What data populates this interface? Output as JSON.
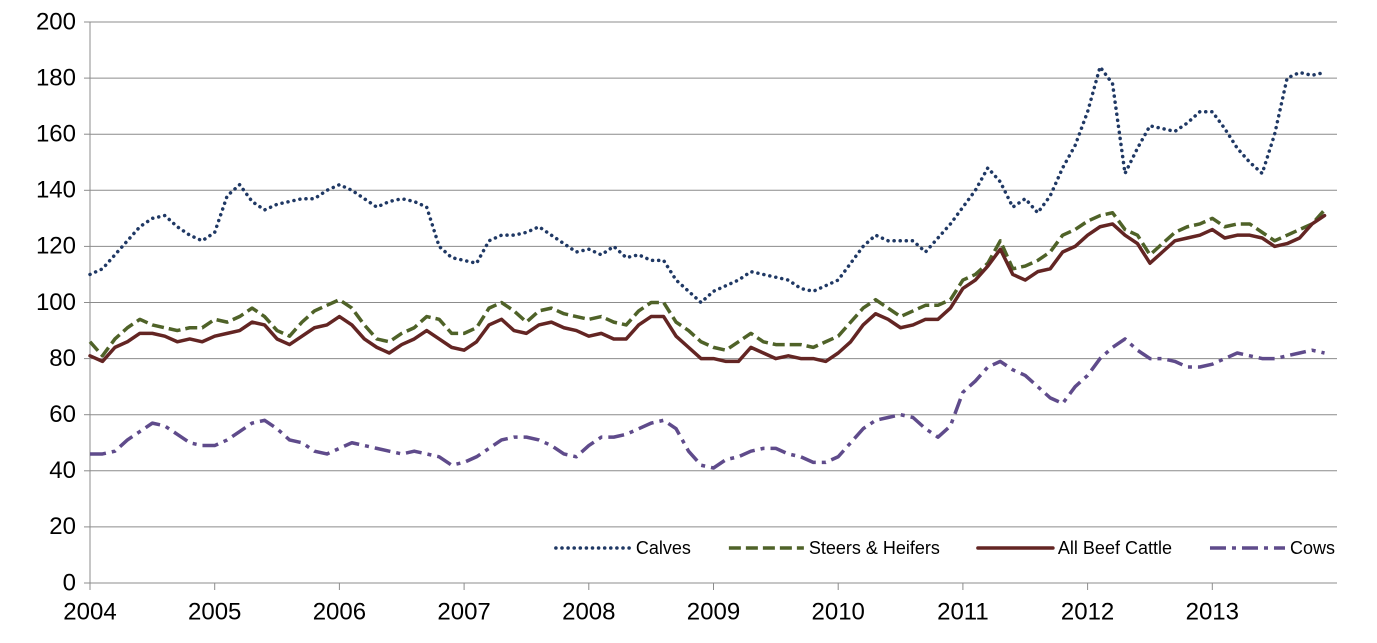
{
  "chart_data": {
    "type": "line",
    "x": [
      2004,
      2004.1,
      2004.2,
      2004.3,
      2004.4,
      2004.5,
      2004.6,
      2004.7,
      2004.8,
      2004.9,
      2005,
      2005.1,
      2005.2,
      2005.3,
      2005.4,
      2005.5,
      2005.6,
      2005.7,
      2005.8,
      2005.9,
      2006,
      2006.1,
      2006.2,
      2006.3,
      2006.4,
      2006.5,
      2006.6,
      2006.7,
      2006.8,
      2006.9,
      2007,
      2007.1,
      2007.2,
      2007.3,
      2007.4,
      2007.5,
      2007.6,
      2007.7,
      2007.8,
      2007.9,
      2008,
      2008.1,
      2008.2,
      2008.3,
      2008.4,
      2008.5,
      2008.6,
      2008.7,
      2008.8,
      2008.9,
      2009,
      2009.1,
      2009.2,
      2009.3,
      2009.4,
      2009.5,
      2009.6,
      2009.7,
      2009.8,
      2009.9,
      2010,
      2010.1,
      2010.2,
      2010.3,
      2010.4,
      2010.5,
      2010.6,
      2010.7,
      2010.8,
      2010.9,
      2011,
      2011.1,
      2011.2,
      2011.3,
      2011.4,
      2011.5,
      2011.6,
      2011.7,
      2011.8,
      2011.9,
      2012,
      2012.1,
      2012.2,
      2012.3,
      2012.4,
      2012.5,
      2012.6,
      2012.7,
      2012.8,
      2012.9,
      2013,
      2013.1,
      2013.2,
      2013.3,
      2013.4,
      2013.5,
      2013.6,
      2013.7,
      2013.8,
      2013.9
    ],
    "series": [
      {
        "name": "Calves",
        "color": "#1f3864",
        "dash": "dotted",
        "values": [
          110,
          112,
          117,
          122,
          127,
          130,
          131,
          127,
          124,
          122,
          125,
          138,
          142,
          136,
          133,
          135,
          136,
          137,
          137,
          140,
          142,
          140,
          137,
          134,
          136,
          137,
          136,
          134,
          120,
          116,
          115,
          114,
          122,
          124,
          124,
          125,
          127,
          124,
          121,
          118,
          119,
          117,
          120,
          116,
          117,
          115,
          115,
          108,
          104,
          100,
          104,
          106,
          108,
          111,
          110,
          109,
          108,
          105,
          104,
          106,
          108,
          114,
          120,
          124,
          122,
          122,
          122,
          118,
          123,
          128,
          134,
          140,
          148,
          143,
          134,
          137,
          132,
          138,
          148,
          156,
          168,
          184,
          178,
          146,
          155,
          163,
          162,
          161,
          164,
          168,
          168,
          162,
          155,
          150,
          146,
          160,
          180,
          182,
          181,
          182
        ]
      },
      {
        "name": "Steers & Heifers",
        "color": "#4f6228",
        "dash": "dashed",
        "values": [
          86,
          81,
          87,
          91,
          94,
          92,
          91,
          90,
          91,
          91,
          94,
          93,
          95,
          98,
          95,
          90,
          88,
          93,
          97,
          99,
          101,
          98,
          92,
          87,
          86,
          89,
          91,
          95,
          94,
          89,
          89,
          91,
          98,
          100,
          97,
          93,
          97,
          98,
          96,
          95,
          94,
          95,
          93,
          92,
          97,
          100,
          100,
          93,
          90,
          86,
          84,
          83,
          86,
          89,
          86,
          85,
          85,
          85,
          84,
          86,
          88,
          93,
          98,
          101,
          98,
          95,
          97,
          99,
          99,
          101,
          108,
          110,
          114,
          122,
          112,
          113,
          115,
          118,
          124,
          126,
          129,
          131,
          132,
          126,
          124,
          117,
          121,
          125,
          127,
          128,
          130,
          127,
          128,
          128,
          125,
          122,
          124,
          126,
          128,
          133
        ]
      },
      {
        "name": "All Beef Cattle",
        "color": "#632523",
        "dash": "solid",
        "values": [
          81,
          79,
          84,
          86,
          89,
          89,
          88,
          86,
          87,
          86,
          88,
          89,
          90,
          93,
          92,
          87,
          85,
          88,
          91,
          92,
          95,
          92,
          87,
          84,
          82,
          85,
          87,
          90,
          87,
          84,
          83,
          86,
          92,
          94,
          90,
          89,
          92,
          93,
          91,
          90,
          88,
          89,
          87,
          87,
          92,
          95,
          95,
          88,
          84,
          80,
          80,
          79,
          79,
          84,
          82,
          80,
          81,
          80,
          80,
          79,
          82,
          86,
          92,
          96,
          94,
          91,
          92,
          94,
          94,
          98,
          105,
          108,
          113,
          119,
          110,
          108,
          111,
          112,
          118,
          120,
          124,
          127,
          128,
          124,
          121,
          114,
          118,
          122,
          123,
          124,
          126,
          123,
          124,
          124,
          123,
          120,
          121,
          123,
          128,
          131
        ]
      },
      {
        "name": "Cows",
        "color": "#5f4b8b",
        "dash": "dashdot",
        "values": [
          46,
          46,
          47,
          51,
          54,
          57,
          56,
          53,
          50,
          49,
          49,
          51,
          54,
          57,
          58,
          55,
          51,
          50,
          47,
          46,
          48,
          50,
          49,
          48,
          47,
          46,
          47,
          46,
          45,
          42,
          43,
          45,
          48,
          51,
          52,
          52,
          51,
          49,
          46,
          45,
          49,
          52,
          52,
          53,
          55,
          57,
          58,
          55,
          47,
          42,
          41,
          44,
          45,
          47,
          48,
          48,
          46,
          45,
          43,
          43,
          45,
          50,
          55,
          58,
          59,
          60,
          59,
          55,
          52,
          56,
          68,
          72,
          77,
          79,
          76,
          74,
          70,
          66,
          64,
          70,
          74,
          80,
          84,
          87,
          83,
          80,
          80,
          79,
          77,
          77,
          78,
          80,
          82,
          81,
          80,
          80,
          81,
          82,
          83,
          82
        ]
      }
    ],
    "xlim": [
      2004,
      2014
    ],
    "xticks": [
      2004,
      2005,
      2006,
      2007,
      2008,
      2009,
      2010,
      2011,
      2012,
      2013
    ],
    "ylim": [
      0,
      200
    ],
    "yticks": [
      0,
      20,
      40,
      60,
      80,
      100,
      120,
      140,
      160,
      180,
      200
    ],
    "grid": true,
    "legend": "lower right"
  }
}
